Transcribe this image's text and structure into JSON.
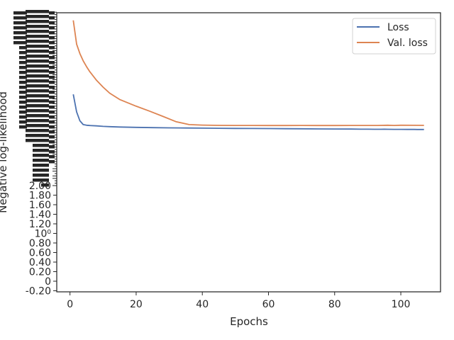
{
  "chart_data": {
    "type": "line",
    "title": "",
    "xlabel": "Epochs",
    "ylabel": "Negative log-likelihood",
    "xlim": [
      -4,
      112
    ],
    "x_ticks": [
      0,
      20,
      40,
      60,
      80,
      100
    ],
    "x_tick_labels": [
      "0",
      "20",
      "40",
      "60",
      "80",
      "100"
    ],
    "y_ticks": [
      -0.2,
      0,
      0.2,
      0.4,
      0.6,
      0.8,
      1.0,
      1.2,
      1.4,
      1.6,
      1.8,
      2.0
    ],
    "y_tick_labels": [
      "-0.20",
      "0",
      "0.20",
      "0.40",
      "0.60",
      "0.80",
      "10⁰",
      "1.20",
      "1.40",
      "1.60",
      "1.80",
      "2.00"
    ],
    "y_tick_note": "tick labels above 2.00 are overprinted and unreadable",
    "grid": false,
    "legend_position": "top-right",
    "series": [
      {
        "name": "Loss",
        "color": "#4c72b0",
        "x": [
          1,
          2,
          3,
          4,
          5,
          6,
          8,
          10,
          12,
          15,
          20,
          25,
          30,
          35,
          40,
          45,
          50,
          55,
          60,
          65,
          70,
          75,
          80,
          85,
          88,
          90,
          92,
          94,
          95,
          96,
          98,
          100,
          102,
          104,
          105,
          107
        ],
        "y": [
          9.6,
          8.3,
          7.7,
          7.4,
          7.3,
          7.25,
          7.2,
          7.12,
          7.08,
          7.03,
          6.97,
          6.93,
          6.9,
          6.88,
          6.86,
          6.84,
          6.82,
          6.81,
          6.79,
          6.77,
          6.76,
          6.74,
          6.73,
          6.72,
          6.7,
          6.7,
          6.69,
          6.69,
          6.7,
          6.69,
          6.68,
          6.68,
          6.67,
          6.67,
          6.66,
          6.66
        ]
      },
      {
        "name": "Val. loss",
        "color": "#dd8452",
        "x": [
          1,
          2,
          3,
          4,
          5,
          6,
          8,
          10,
          12,
          15,
          20,
          24,
          28,
          32,
          36,
          40,
          45,
          50,
          55,
          60,
          65,
          70,
          75,
          80,
          85,
          90,
          93,
          96,
          98,
          100,
          104,
          107
        ],
        "y": [
          17.8,
          14.6,
          13.5,
          12.7,
          12.1,
          11.6,
          10.8,
          10.2,
          9.7,
          9.2,
          8.7,
          8.35,
          8.0,
          7.65,
          7.4,
          7.32,
          7.28,
          7.27,
          7.26,
          7.25,
          7.25,
          7.26,
          7.25,
          7.25,
          7.26,
          7.26,
          7.27,
          7.3,
          7.27,
          7.3,
          7.29,
          7.28
        ]
      }
    ]
  }
}
